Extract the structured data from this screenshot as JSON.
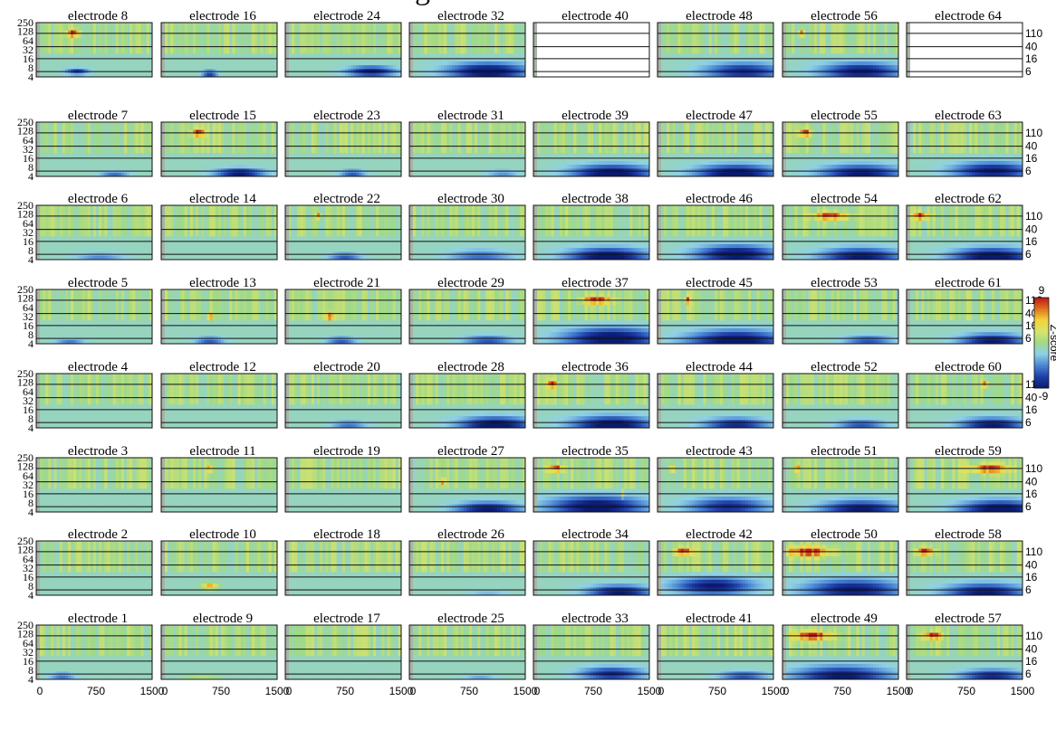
{
  "header_partial": "g",
  "chart_data": {
    "type": "heatmap",
    "panel_grid": {
      "rows": 8,
      "cols": 8
    },
    "title_prefix": "electrode",
    "columns": [
      [
        8,
        7,
        6,
        5,
        4,
        3,
        2,
        1
      ],
      [
        16,
        15,
        14,
        13,
        12,
        11,
        10,
        9
      ],
      [
        24,
        23,
        22,
        21,
        20,
        19,
        18,
        17
      ],
      [
        32,
        31,
        30,
        29,
        28,
        27,
        26,
        25
      ],
      [
        40,
        39,
        38,
        37,
        36,
        35,
        34,
        33
      ],
      [
        48,
        47,
        46,
        45,
        44,
        43,
        42,
        41
      ],
      [
        56,
        55,
        54,
        53,
        52,
        51,
        50,
        49
      ],
      [
        64,
        63,
        62,
        61,
        60,
        59,
        58,
        57
      ]
    ],
    "blank_panels": [
      40,
      64
    ],
    "x_ticks": [
      "0",
      "750",
      "1500"
    ],
    "xlim": [
      0,
      1500
    ],
    "y_ticks_left": [
      "250",
      "128",
      "64",
      "32",
      "16",
      "8",
      "4"
    ],
    "y_ticks_right": [
      "110",
      "40",
      "16",
      "6"
    ],
    "colorbar": {
      "min": -9,
      "max": 9,
      "min_label": "-9",
      "max_label": "9",
      "label": "Z-score"
    },
    "colormap": [
      "#0a1a6e",
      "#1f3fa8",
      "#4a86d4",
      "#8fd0e6",
      "#9fd98a",
      "#d9e36a",
      "#f1d43c",
      "#e2701f",
      "#b81a1a"
    ],
    "background_value": 0,
    "blobs": {
      "1": [
        [
          1,
          300,
          5,
          0.16,
          -4
        ]
      ],
      "2": [],
      "3": [],
      "4": [],
      "5": [
        [
          1,
          400,
          4,
          0.18,
          -5
        ]
      ],
      "6": [
        [
          1,
          800,
          4.5,
          0.3,
          -3
        ]
      ],
      "7": [
        [
          1,
          1000,
          4.5,
          0.18,
          -4
        ]
      ],
      "8": [
        [
          1,
          500,
          6,
          0.14,
          -6
        ],
        [
          1,
          450,
          110,
          0.08,
          9
        ]
      ],
      "9": [
        [
          1,
          500,
          4,
          0.22,
          2.5
        ]
      ],
      "10": [
        [
          1,
          600,
          8,
          0.1,
          7
        ]
      ],
      "11": [
        [
          1,
          600,
          110,
          0.03,
          8
        ]
      ],
      "12": [],
      "13": [
        [
          1,
          600,
          5,
          0.18,
          -5
        ],
        [
          1,
          600,
          32,
          0.03,
          8
        ]
      ],
      "14": [],
      "15": [
        [
          1,
          1000,
          5,
          0.3,
          -8
        ],
        [
          1,
          450,
          110,
          0.08,
          9
        ]
      ],
      "16": [
        [
          1,
          600,
          5,
          0.1,
          -6
        ]
      ],
      "17": [],
      "18": [],
      "19": [],
      "20": [
        [
          1,
          800,
          5,
          0.22,
          -4
        ]
      ],
      "21": [
        [
          1,
          700,
          5,
          0.18,
          -5
        ],
        [
          1,
          550,
          32,
          0.05,
          9
        ]
      ],
      "22": [
        [
          1,
          750,
          5,
          0.2,
          -5
        ],
        [
          1,
          400,
          110,
          0.03,
          8
        ]
      ],
      "23": [
        [
          1,
          850,
          5,
          0.16,
          -5
        ]
      ],
      "24": [
        [
          1,
          1100,
          6,
          0.3,
          -8
        ]
      ],
      "25": [
        [
          1,
          900,
          4,
          0.2,
          -3
        ]
      ],
      "26": [
        [
          1,
          1000,
          4,
          0.25,
          -2
        ]
      ],
      "27": [
        [
          1,
          1000,
          5,
          0.4,
          -8
        ],
        [
          1,
          400,
          40,
          0.03,
          7
        ]
      ],
      "28": [
        [
          1,
          1100,
          5,
          0.45,
          -9
        ]
      ],
      "29": [
        [
          1,
          1000,
          5,
          0.3,
          -5
        ]
      ],
      "30": [
        [
          1,
          900,
          5,
          0.4,
          -4
        ]
      ],
      "31": [
        [
          1,
          1200,
          5,
          0.2,
          -3
        ]
      ],
      "32": [
        [
          1,
          1000,
          6,
          0.5,
          -9
        ]
      ],
      "33": [
        [
          1,
          1000,
          6,
          0.4,
          -7
        ]
      ],
      "34": [
        [
          1,
          1100,
          5,
          0.4,
          -8
        ]
      ],
      "35": [
        [
          1,
          800,
          6,
          0.6,
          -9
        ],
        [
          1,
          250,
          110,
          0.1,
          9
        ],
        [
          1,
          1150,
          16,
          0.02,
          8
        ]
      ],
      "36": [
        [
          1,
          1000,
          5,
          0.5,
          -9
        ],
        [
          1,
          200,
          110,
          0.06,
          9
        ]
      ],
      "37": [
        [
          1,
          1000,
          6,
          0.6,
          -9
        ],
        [
          1,
          800,
          110,
          0.18,
          9
        ]
      ],
      "38": [
        [
          1,
          950,
          5,
          0.5,
          -9
        ]
      ],
      "39": [
        [
          1,
          1000,
          5,
          0.5,
          -9
        ]
      ],
      "40": [],
      "41": [
        [
          1,
          1100,
          5,
          0.3,
          -5
        ]
      ],
      "42": [
        [
          1,
          700,
          8,
          0.5,
          -8
        ],
        [
          1,
          300,
          110,
          0.12,
          9
        ]
      ],
      "43": [
        [
          1,
          900,
          6,
          0.5,
          -7
        ],
        [
          1,
          150,
          110,
          0.03,
          8
        ]
      ],
      "44": [
        [
          1,
          1000,
          5,
          0.4,
          -7
        ]
      ],
      "45": [
        [
          1,
          1000,
          5,
          0.6,
          -9
        ],
        [
          1,
          350,
          110,
          0.03,
          8
        ]
      ],
      "46": [
        [
          1,
          1000,
          6,
          0.5,
          -9
        ]
      ],
      "47": [
        [
          1,
          1000,
          5,
          0.5,
          -9
        ]
      ],
      "48": [
        [
          1,
          1100,
          6,
          0.5,
          -7
        ]
      ],
      "49": [
        [
          1,
          750,
          5,
          0.6,
          -8
        ],
        [
          1,
          350,
          110,
          0.25,
          9
        ]
      ],
      "50": [
        [
          1,
          900,
          6,
          0.6,
          -8
        ],
        [
          1,
          300,
          110,
          0.3,
          9
        ]
      ],
      "51": [
        [
          1,
          1000,
          5,
          0.5,
          -8
        ],
        [
          1,
          150,
          110,
          0.03,
          8
        ]
      ],
      "52": [
        [
          1,
          1000,
          5,
          0.3,
          -5
        ]
      ],
      "53": [
        [
          1,
          1100,
          5,
          0.3,
          -5
        ]
      ],
      "54": [
        [
          1,
          1000,
          5,
          0.5,
          -8
        ],
        [
          1,
          600,
          110,
          0.22,
          9
        ]
      ],
      "55": [
        [
          1,
          1000,
          5,
          0.5,
          -8
        ],
        [
          1,
          250,
          110,
          0.08,
          9
        ]
      ],
      "56": [
        [
          1,
          1000,
          6,
          0.5,
          -8
        ],
        [
          1,
          200,
          110,
          0.04,
          8
        ]
      ],
      "57": [
        [
          1,
          1100,
          5,
          0.4,
          -7
        ],
        [
          1,
          300,
          110,
          0.12,
          9
        ]
      ],
      "58": [
        [
          1,
          1000,
          5,
          0.5,
          -8
        ],
        [
          1,
          200,
          110,
          0.12,
          9
        ]
      ],
      "59": [
        [
          1,
          1200,
          5,
          0.5,
          -9
        ],
        [
          1,
          1050,
          110,
          0.25,
          9
        ]
      ],
      "60": [
        [
          1,
          1100,
          5,
          0.4,
          -8
        ],
        [
          1,
          1000,
          110,
          0.04,
          8
        ]
      ],
      "61": [
        [
          1,
          1100,
          5,
          0.4,
          -8
        ]
      ],
      "62": [
        [
          1,
          1100,
          5,
          0.5,
          -9
        ],
        [
          1,
          150,
          110,
          0.1,
          9
        ]
      ],
      "63": [
        [
          1,
          1100,
          6,
          0.5,
          -8
        ]
      ],
      "64": []
    }
  }
}
